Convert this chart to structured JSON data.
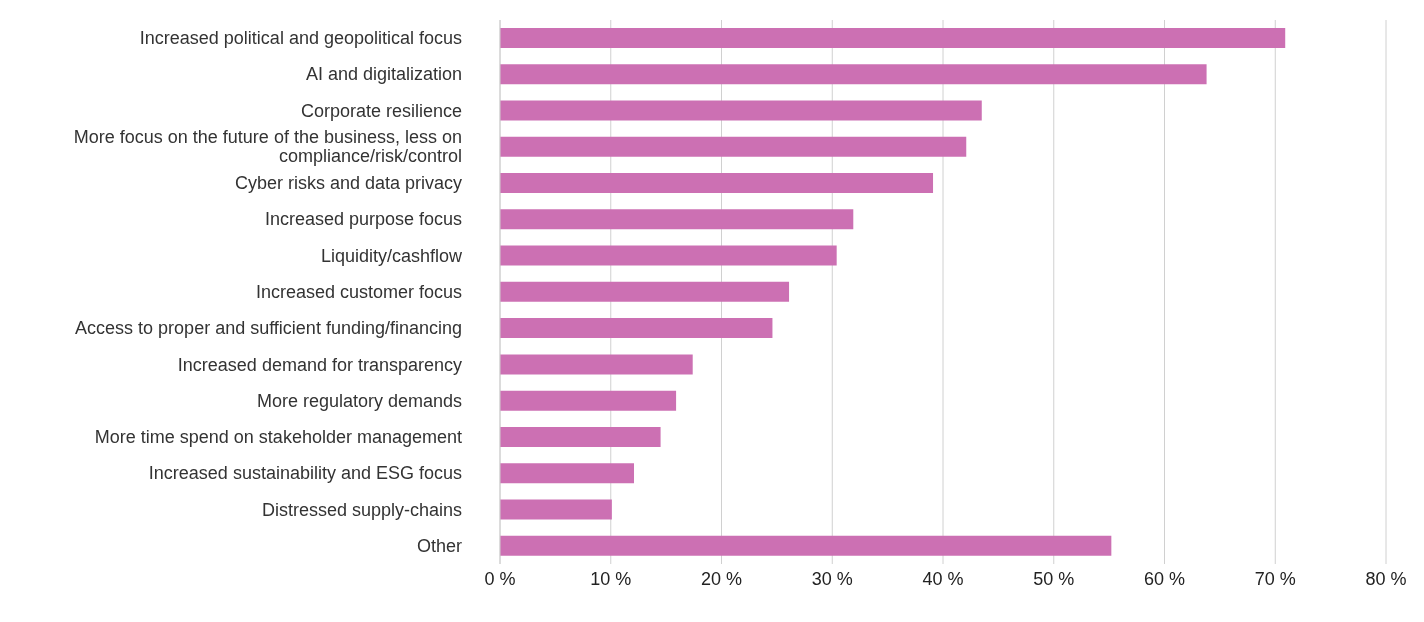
{
  "chart_data": {
    "type": "bar",
    "orientation": "horizontal",
    "categories": [
      "Increased political and geopolitical focus",
      "AI and digitalization",
      "Corporate resilience",
      "More focus on the future of the business, less on compliance/risk/control",
      "Cyber risks and data privacy",
      "Increased purpose focus",
      "Liquidity/cashflow",
      "Increased customer focus",
      "Access to proper and sufficient funding/financing",
      "Increased demand for transparency",
      "More regulatory demands",
      "More time spend on stakeholder management",
      "Increased sustainability and ESG focus",
      "Distressed supply-chains",
      "Other"
    ],
    "values": [
      70.9,
      63.8,
      43.5,
      42.1,
      39.1,
      31.9,
      30.4,
      26.1,
      24.6,
      17.4,
      15.9,
      14.5,
      12.1,
      10.1,
      55.2
    ],
    "color": "#cc70b3",
    "xlim": [
      0,
      80
    ],
    "xticks": [
      {
        "value": 0,
        "label": "0 %"
      },
      {
        "value": 10,
        "label": "10 %"
      },
      {
        "value": 20,
        "label": "20 %"
      },
      {
        "value": 30,
        "label": "30 %"
      },
      {
        "value": 40,
        "label": "40 %"
      },
      {
        "value": 50,
        "label": "50 %"
      },
      {
        "value": 60,
        "label": "60 %"
      },
      {
        "value": 70,
        "label": "70 %"
      },
      {
        "value": 80,
        "label": "80 %"
      }
    ],
    "grid": "x",
    "legend": false
  }
}
